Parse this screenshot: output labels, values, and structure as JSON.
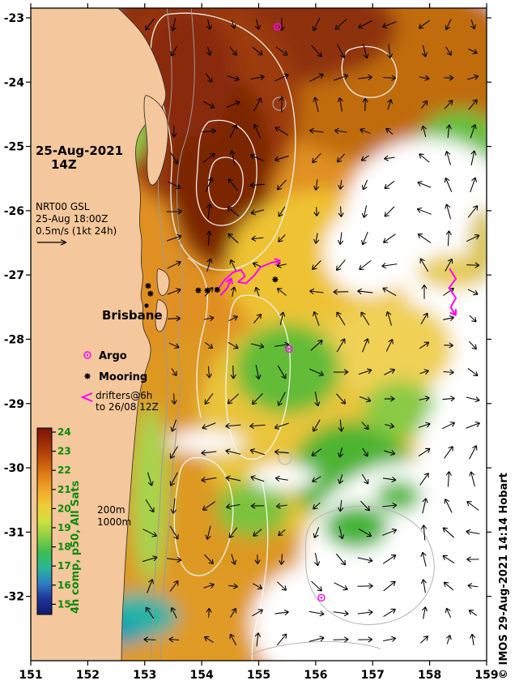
{
  "header": {
    "date_line": "25-Aug-2021",
    "time_line": "14Z"
  },
  "product_info": {
    "line1": "NRT00 GSL",
    "line2": "25-Aug 18:00Z",
    "line3": "0.5m/s (1kt 24h)"
  },
  "city_label": "Brisbane",
  "legend": {
    "argo_label": "Argo",
    "mooring_label": "Mooring",
    "drifters_label_1": "drifters@6h",
    "drifters_label_2": "to 26/08 12Z"
  },
  "depth_contours": {
    "shallow": "200m",
    "deep": "1000m"
  },
  "colorbar": {
    "label": "4h comp, p50, All Sats",
    "ticks": [
      "24",
      "23",
      "22",
      "21",
      "20",
      "19",
      "18",
      "17",
      "16",
      "15"
    ],
    "gradient": [
      "#7a1404",
      "#9e2c06",
      "#c05208",
      "#e07c14",
      "#f0a828",
      "#f2cc38",
      "#cfe040",
      "#8ccf40",
      "#3cbe50",
      "#2cb49a",
      "#2e7ec4",
      "#20329a",
      "#101c6e"
    ]
  },
  "axes": {
    "x_ticks": [
      "151",
      "152",
      "153",
      "154",
      "155",
      "156",
      "157",
      "158",
      "159"
    ],
    "y_ticks": [
      "-23",
      "-24",
      "-25",
      "-26",
      "-27",
      "-28",
      "-29",
      "-30",
      "-31",
      "-32"
    ],
    "x_range": [
      151,
      159
    ],
    "y_range": [
      -33,
      -23
    ]
  },
  "credit": "© IMOS 29-Aug-2021 14:14 Hobart",
  "markers": {
    "argo_floats_lonlat": [
      [
        155.33,
        -23.14
      ],
      [
        155.53,
        -28.15
      ],
      [
        156.1,
        -32.02
      ]
    ],
    "moorings_lonlat": [
      [
        153.06,
        -27.17
      ],
      [
        153.1,
        -27.29
      ],
      [
        153.94,
        -27.24
      ],
      [
        154.1,
        -27.24
      ],
      [
        154.27,
        -27.23
      ],
      [
        155.29,
        -27.07
      ]
    ],
    "drifter_tracks_lonlat": [
      [
        [
          154.28,
          -27.23
        ],
        [
          154.4,
          -27.08
        ],
        [
          154.55,
          -26.96
        ],
        [
          154.69,
          -26.92
        ],
        [
          154.76,
          -27.02
        ],
        [
          154.64,
          -27.11
        ],
        [
          154.78,
          -27.13
        ],
        [
          154.93,
          -27.0
        ],
        [
          155.03,
          -26.88
        ],
        [
          155.22,
          -26.81
        ],
        [
          155.38,
          -26.78
        ]
      ],
      [
        [
          154.33,
          -27.32
        ],
        [
          154.45,
          -27.2
        ],
        [
          154.52,
          -27.05
        ]
      ],
      [
        [
          158.35,
          -26.9
        ],
        [
          158.46,
          -27.06
        ],
        [
          158.34,
          -27.2
        ],
        [
          158.46,
          -27.36
        ],
        [
          158.37,
          -27.5
        ],
        [
          158.46,
          -27.63
        ]
      ]
    ]
  },
  "colors": {
    "land": "#f4c79c",
    "magenta": "#ff00ff",
    "annotation_green": "#0c8a0c",
    "sea_warm": "#e09020"
  }
}
